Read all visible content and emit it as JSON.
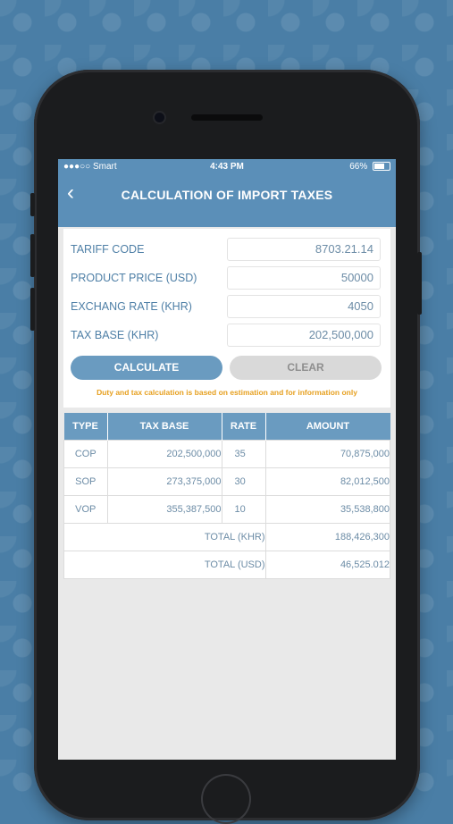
{
  "status": {
    "carrier": "●●●○○ Smart",
    "time": "4:43 PM",
    "battery": "66%"
  },
  "header": {
    "title": "CALCULATION OF IMPORT TAXES",
    "back_icon": "chevron-left"
  },
  "form": {
    "tariff_code": {
      "label": "TARIFF CODE",
      "value": "8703.21.14"
    },
    "product_price": {
      "label": "PRODUCT PRICE (USD)",
      "value": "50000"
    },
    "exchange_rate": {
      "label": "EXCHANG RATE (KHR)",
      "value": "4050"
    },
    "tax_base": {
      "label": "TAX BASE (KHR)",
      "value": "202,500,000"
    },
    "calculate_label": "CALCULATE",
    "clear_label": "CLEAR",
    "note": "Duty and tax calculation is based on estimation and for information only"
  },
  "table": {
    "headers": [
      "TYPE",
      "TAX BASE",
      "RATE",
      "AMOUNT"
    ],
    "rows": [
      {
        "type": "COP",
        "tax_base": "202,500,000",
        "rate": "35",
        "amount": "70,875,000"
      },
      {
        "type": "SOP",
        "tax_base": "273,375,000",
        "rate": "30",
        "amount": "82,012,500"
      },
      {
        "type": "VOP",
        "tax_base": "355,387,500",
        "rate": "10",
        "amount": "35,538,800"
      }
    ],
    "total_khr": {
      "label": "TOTAL (KHR)",
      "value": "188,426,300"
    },
    "total_usd": {
      "label": "TOTAL (USD)",
      "value": "46,525.012"
    }
  },
  "colors": {
    "accent": "#5b8fb8",
    "button": "#6a9bc0",
    "note": "#e6a020",
    "background": "#4a7ea6"
  }
}
